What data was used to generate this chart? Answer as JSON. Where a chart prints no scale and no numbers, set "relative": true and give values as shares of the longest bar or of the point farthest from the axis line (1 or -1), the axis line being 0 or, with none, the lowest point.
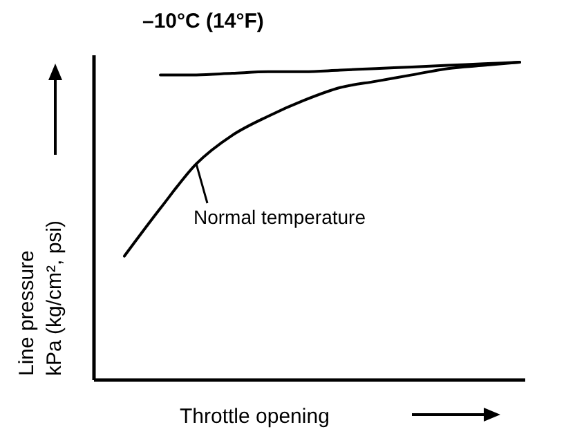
{
  "chart_data": {
    "type": "line",
    "relative": true,
    "xlabel": "Throttle opening",
    "ylabel": "Line pressure kPa (kg/cm², psi)",
    "categories": [
      null,
      null,
      null,
      null,
      null,
      null,
      null,
      null,
      null,
      null,
      null,
      null
    ],
    "marker": "none",
    "line_style": "solid",
    "grid": false,
    "series": [
      {
        "name": "–10°C (14°F)",
        "color": "#000000",
        "values": [
          null,
          0.96,
          0.96,
          0.965,
          0.97,
          0.97,
          0.975,
          0.98,
          0.985,
          0.99,
          0.995,
          1
        ]
      },
      {
        "name": "Normal temperature",
        "color": "#000000",
        "values": [
          0.39,
          0.54,
          0.68,
          0.77,
          0.83,
          0.88,
          0.92,
          0.94,
          0.96,
          0.98,
          0.99,
          1
        ]
      }
    ]
  }
}
